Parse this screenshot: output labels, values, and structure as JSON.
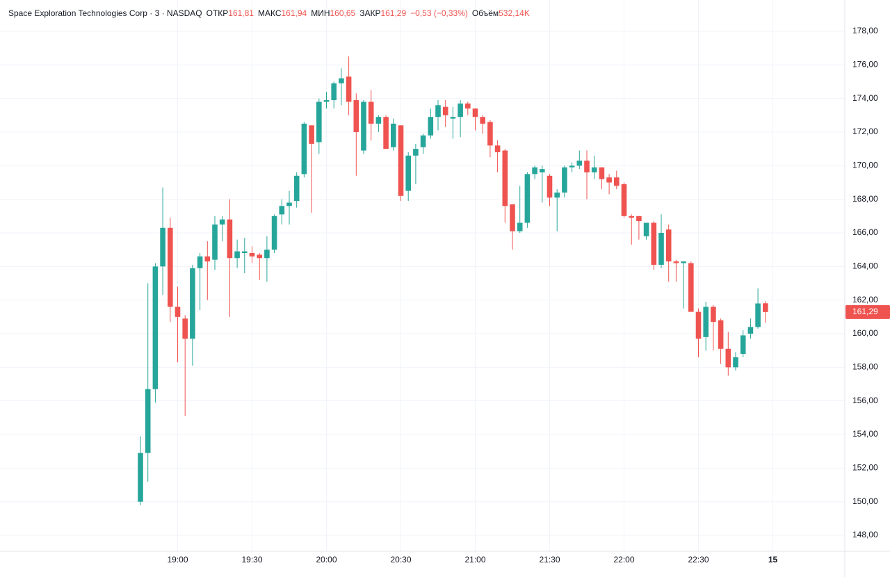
{
  "chart_data": {
    "type": "candlestick",
    "header": {
      "title": "Space Exploration Technologies Corp · 3 · NASDAQ",
      "fields": [
        {
          "label": "ОТКР",
          "value": "161,81"
        },
        {
          "label": "МАКС",
          "value": "161,94"
        },
        {
          "label": "МИН",
          "value": "160,65"
        },
        {
          "label": "ЗАКР",
          "value": "161,29"
        }
      ],
      "change": "−0,53 (−0,33%)",
      "volume": {
        "label": "Объём",
        "value": "532,14K"
      }
    },
    "up_color": "#26a69a",
    "down_color": "#ef5350",
    "grid": true,
    "categories": [
      null,
      null,
      null,
      null,
      null,
      "19:00",
      null,
      null,
      null,
      null,
      null,
      null,
      null,
      null,
      null,
      "19:30",
      null,
      null,
      null,
      null,
      null,
      null,
      null,
      null,
      null,
      "20:00",
      null,
      null,
      null,
      null,
      null,
      null,
      null,
      null,
      null,
      "20:30",
      null,
      null,
      null,
      null,
      null,
      null,
      null,
      null,
      null,
      "21:00",
      null,
      null,
      null,
      null,
      null,
      null,
      null,
      null,
      null,
      "21:30",
      null,
      null,
      null,
      null,
      null,
      null,
      null,
      null,
      null,
      "22:00",
      null,
      null,
      null,
      null,
      null,
      null,
      null,
      null,
      null,
      "22:30",
      null,
      null,
      null,
      null,
      null,
      null,
      null,
      null,
      null,
      "15"
    ],
    "open": [
      150,
      152.9,
      156.7,
      164,
      166.3,
      161.6,
      160.9,
      159.7,
      163.9,
      164.6,
      164.4,
      166.5,
      166.8,
      164.5,
      164.8,
      164.8,
      164.7,
      164.5,
      165,
      167.1,
      167.6,
      167.9,
      169.5,
      172.4,
      171.4,
      173.8,
      173.9,
      174.9,
      175.3,
      173.9,
      170.9,
      173.8,
      172.5,
      172.9,
      171.1,
      172.4,
      168.5,
      170.6,
      171.1,
      171.8,
      172.9,
      173.5,
      172.8,
      172.9,
      173.7,
      173.4,
      172.9,
      172.6,
      171.2,
      170.9,
      167.7,
      166.1,
      166.6,
      169.5,
      169.6,
      169.4,
      168.1,
      168.4,
      169.9,
      170,
      170.3,
      169.6,
      169.9,
      169.3,
      169.3,
      168.9,
      167,
      167,
      165.8,
      166.6,
      164.1,
      166.2,
      164.3,
      164.2,
      164.2,
      161.3,
      159.8,
      161.6,
      160.8,
      159.1,
      158,
      158.8,
      160,
      160.4,
      161.81,
      null
    ],
    "high": [
      153.9,
      163,
      164.2,
      168.7,
      166.9,
      162.8,
      161.1,
      164.1,
      164.8,
      165.5,
      167,
      167,
      168,
      165.6,
      165.7,
      165.2,
      164.8,
      165.8,
      167.1,
      168,
      168.5,
      169.6,
      172.6,
      172.4,
      174,
      174.4,
      175,
      175.8,
      176.5,
      174.3,
      173.9,
      174.5,
      173,
      173,
      172.8,
      172.4,
      170.8,
      171.3,
      171.9,
      173.4,
      173.9,
      173.9,
      173.5,
      173.9,
      173.8,
      173.4,
      173,
      172.7,
      171.5,
      171,
      167.7,
      168.8,
      169.6,
      170,
      170,
      169.5,
      168.6,
      170,
      170.2,
      170.9,
      170.9,
      170.6,
      169.9,
      169.5,
      169.7,
      169,
      167.1,
      167,
      166.6,
      166.7,
      167.1,
      166.5,
      164.4,
      164.3,
      164.3,
      161.5,
      161.9,
      161.7,
      160.9,
      160.1,
      158.9,
      160.2,
      160.9,
      162.7,
      161.94,
      null
    ],
    "low": [
      149.8,
      151.2,
      155.9,
      162.3,
      160.7,
      158.3,
      155.1,
      158.1,
      161.4,
      162,
      163.8,
      165.5,
      161,
      163.9,
      163.6,
      164.2,
      163.2,
      163.1,
      164.8,
      166.5,
      166.5,
      167.5,
      169.3,
      167.2,
      170.7,
      173.4,
      173.4,
      173.6,
      173,
      169.4,
      170.7,
      171.5,
      172,
      171,
      170.9,
      167.9,
      167.9,
      168.9,
      170.7,
      171.6,
      172.1,
      172.3,
      171.6,
      171.7,
      173,
      172.1,
      171.9,
      170.5,
      169.6,
      166.6,
      165,
      166,
      166.3,
      169.2,
      167.8,
      167.6,
      166.1,
      168.1,
      169.6,
      169.8,
      168,
      169.2,
      168.6,
      168.3,
      168.6,
      166.9,
      165.3,
      165.6,
      165.6,
      163.8,
      163.9,
      163.1,
      163.1,
      161.5,
      161.3,
      158.6,
      159,
      159,
      158.2,
      157.5,
      157.8,
      158.6,
      159.7,
      160.3,
      160.65,
      null
    ],
    "close": [
      152.9,
      156.7,
      164,
      166.3,
      161.6,
      161,
      159.7,
      163.9,
      164.6,
      164.3,
      166.5,
      166.8,
      164.5,
      164.9,
      164.9,
      164.6,
      164.5,
      165,
      167,
      167.6,
      167.8,
      169.4,
      172.5,
      171.3,
      173.8,
      173.9,
      174.9,
      175.2,
      173.8,
      172,
      173.8,
      172.5,
      172.9,
      171,
      172.5,
      168.2,
      170.6,
      171,
      171.8,
      172.9,
      173.6,
      173,
      172.9,
      173.7,
      173.4,
      172.9,
      172.5,
      171.2,
      170.8,
      167.6,
      166.1,
      166.6,
      169.5,
      169.9,
      169.8,
      168.1,
      168.4,
      169.9,
      170,
      170.3,
      169.6,
      169.9,
      169.2,
      169,
      168.8,
      167,
      166.9,
      166.7,
      166.6,
      164.1,
      166,
      164.3,
      164.2,
      164.3,
      161.3,
      159.7,
      161.6,
      160.7,
      159.1,
      158,
      158.6,
      159.9,
      160.4,
      161.8,
      161.29,
      null
    ],
    "ylim": [
      147.05,
      179.86
    ],
    "yticks": [
      {
        "value": 148,
        "label": "148,00"
      },
      {
        "value": 150,
        "label": "150,00"
      },
      {
        "value": 152,
        "label": "152,00"
      },
      {
        "value": 154,
        "label": "154,00"
      },
      {
        "value": 156,
        "label": "156,00"
      },
      {
        "value": 158,
        "label": "158,00"
      },
      {
        "value": 160,
        "label": "160,00"
      },
      {
        "value": 162,
        "label": "162,00"
      },
      {
        "value": 164,
        "label": "164,00"
      },
      {
        "value": 166,
        "label": "166,00"
      },
      {
        "value": 168,
        "label": "168,00"
      },
      {
        "value": 170,
        "label": "170,00"
      },
      {
        "value": 172,
        "label": "172,00"
      },
      {
        "value": 174,
        "label": "174,00"
      },
      {
        "value": 176,
        "label": "176,00"
      },
      {
        "value": 178,
        "label": "178,00"
      }
    ],
    "last_price": {
      "value": 161.29,
      "label": "161,29"
    }
  }
}
